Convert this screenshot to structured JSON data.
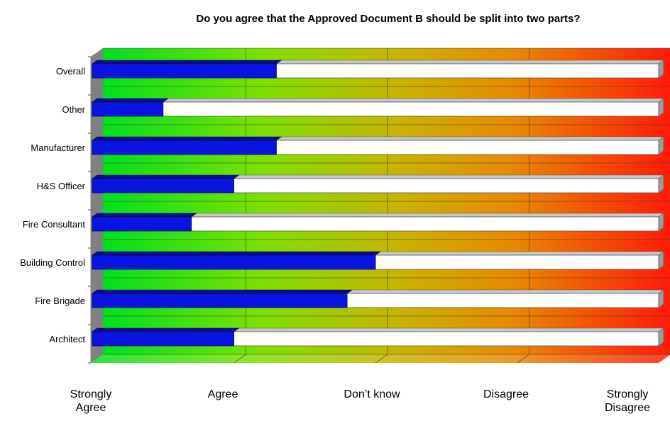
{
  "chart_data": {
    "type": "bar",
    "title": "Do you agree that the Approved Document B should be split into two parts?",
    "categories": [
      "Overall",
      "Other",
      "Manufacturer",
      "H&S Officer",
      "Fire Consultant",
      "Building Control",
      "Fire Brigade",
      "Architect"
    ],
    "values": [
      1.3,
      0.5,
      1.3,
      1.0,
      0.7,
      2.0,
      1.8,
      1.0
    ],
    "xlim": [
      0,
      4
    ],
    "x_tick_labels": [
      "Strongly\nAgree",
      "Agree",
      "Don’t know",
      "Disagree",
      "Strongly\nDisagree"
    ],
    "grid": true,
    "legend": "none",
    "colors": {
      "bar": "#0a14e0",
      "bar_remainder": "#ffffff",
      "gradient_start": "#00e01e",
      "gradient_mid1": "#7ee000",
      "gradient_mid2": "#c8b400",
      "gradient_mid3": "#e88a00",
      "gradient_end": "#ff1a0a"
    }
  }
}
